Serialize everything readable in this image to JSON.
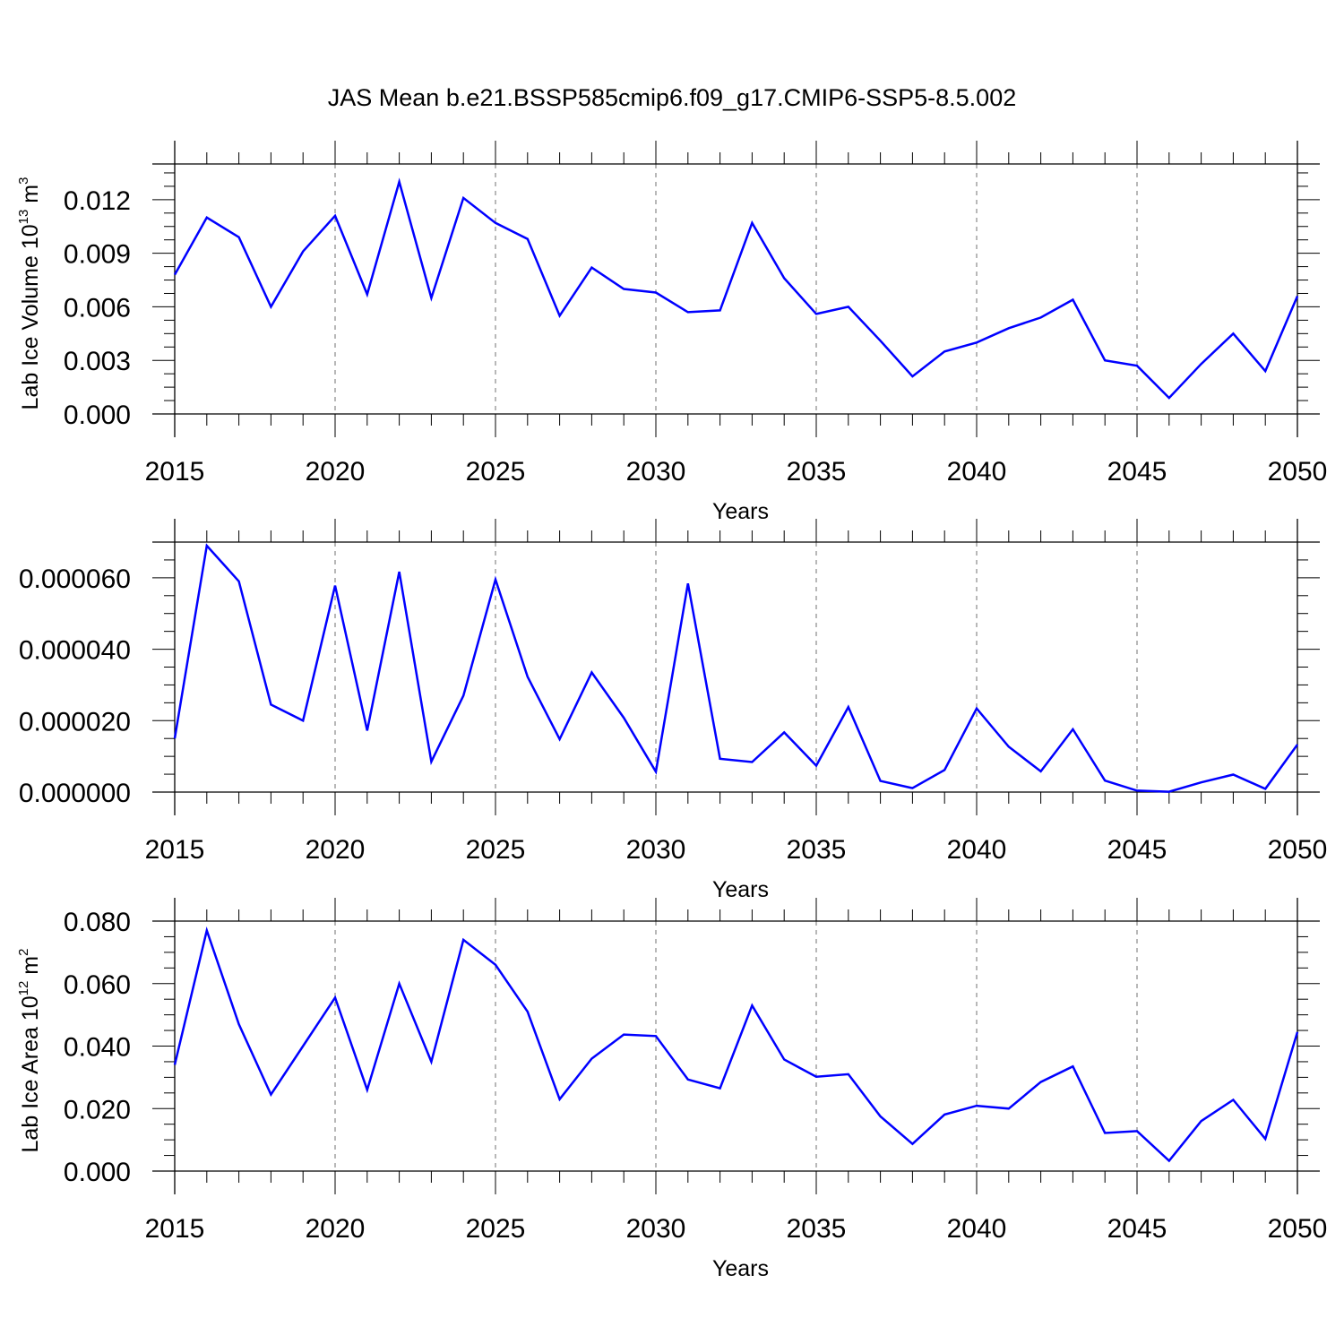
{
  "title": "JAS Mean b.e21.BSSP585cmip6.f09_g17.CMIP6-SSP5-8.5.002",
  "series_color": "#0000ff",
  "grid_color": "#888888",
  "chart_data": [
    {
      "type": "line",
      "panel": "top",
      "xlabel": "Years",
      "ylabel_text": "Lab Ice Volume 10",
      "ylabel_sup1": "13",
      "ylabel_mid": " m",
      "ylabel_sup2": "3",
      "xlim": [
        2015,
        2050
      ],
      "ylim": [
        0,
        0.014
      ],
      "x_ticks": [
        2015,
        2020,
        2025,
        2030,
        2035,
        2040,
        2045,
        2050
      ],
      "x_tick_labels": [
        "2015",
        "2020",
        "2025",
        "2030",
        "2035",
        "2040",
        "2045",
        "2050"
      ],
      "y_ticks": [
        0,
        0.003,
        0.006,
        0.009,
        0.012
      ],
      "y_tick_labels": [
        "0.000",
        "0.003",
        "0.006",
        "0.009",
        "0.012"
      ],
      "vertical_grid": "dashed at major x ticks",
      "x": [
        2015,
        2016,
        2017,
        2018,
        2019,
        2020,
        2021,
        2022,
        2023,
        2024,
        2025,
        2026,
        2027,
        2028,
        2029,
        2030,
        2031,
        2032,
        2033,
        2034,
        2035,
        2036,
        2037,
        2038,
        2039,
        2040,
        2041,
        2042,
        2043,
        2044,
        2045,
        2046,
        2047,
        2048,
        2049,
        2050
      ],
      "values": [
        0.0078,
        0.011,
        0.0099,
        0.006,
        0.0091,
        0.0111,
        0.0067,
        0.013,
        0.0065,
        0.0121,
        0.0107,
        0.0098,
        0.0055,
        0.0082,
        0.007,
        0.0068,
        0.0057,
        0.0058,
        0.0107,
        0.0076,
        0.0056,
        0.006,
        0.0041,
        0.0021,
        0.0035,
        0.004,
        0.0048,
        0.0054,
        0.0064,
        0.003,
        0.0027,
        0.0009,
        0.0028,
        0.0045,
        0.0024,
        0.0066
      ]
    },
    {
      "type": "line",
      "panel": "middle",
      "xlabel": "Years",
      "xlim": [
        2015,
        2050
      ],
      "ylim": [
        0,
        7e-05
      ],
      "x_ticks": [
        2015,
        2020,
        2025,
        2030,
        2035,
        2040,
        2045,
        2050
      ],
      "x_tick_labels": [
        "2015",
        "2020",
        "2025",
        "2030",
        "2035",
        "2040",
        "2045",
        "2050"
      ],
      "y_ticks": [
        0,
        2e-05,
        4e-05,
        6e-05
      ],
      "y_tick_labels": [
        "0.000000",
        "0.000020",
        "0.000040",
        "0.000060"
      ],
      "vertical_grid": "dashed at major x ticks",
      "x": [
        2015,
        2016,
        2017,
        2018,
        2019,
        2020,
        2021,
        2022,
        2023,
        2024,
        2025,
        2026,
        2027,
        2028,
        2029,
        2030,
        2031,
        2032,
        2033,
        2034,
        2035,
        2036,
        2037,
        2038,
        2039,
        2040,
        2041,
        2042,
        2043,
        2044,
        2045,
        2046,
        2047,
        2048,
        2049,
        2050
      ],
      "values": [
        1.5e-05,
        6.9e-05,
        5.9e-05,
        2.45e-05,
        2e-05,
        5.78e-05,
        1.72e-05,
        6.17e-05,
        8.5e-06,
        2.7e-05,
        5.95e-05,
        3.23e-05,
        1.48e-05,
        3.35e-05,
        2.08e-05,
        5.7e-06,
        5.84e-05,
        9.3e-06,
        8.4e-06,
        1.67e-05,
        7.4e-06,
        2.38e-05,
        3.1e-06,
        1.1e-06,
        6.2e-06,
        2.34e-05,
        1.27e-05,
        5.8e-06,
        1.76e-05,
        3.2e-06,
        4e-07,
        1e-07,
        2.7e-06,
        4.9e-06,
        9e-07,
        1.33e-05
      ]
    },
    {
      "type": "line",
      "panel": "bottom",
      "xlabel": "Years",
      "ylabel_text": "Lab Ice Area 10",
      "ylabel_sup1": "12",
      "ylabel_mid": " m",
      "ylabel_sup2": "2",
      "xlim": [
        2015,
        2050
      ],
      "ylim": [
        0,
        0.08
      ],
      "x_ticks": [
        2015,
        2020,
        2025,
        2030,
        2035,
        2040,
        2045,
        2050
      ],
      "x_tick_labels": [
        "2015",
        "2020",
        "2025",
        "2030",
        "2035",
        "2040",
        "2045",
        "2050"
      ],
      "y_ticks": [
        0,
        0.02,
        0.04,
        0.06,
        0.08
      ],
      "y_tick_labels": [
        "0.000",
        "0.020",
        "0.040",
        "0.060",
        "0.080"
      ],
      "vertical_grid": "dashed at major x ticks",
      "x": [
        2015,
        2016,
        2017,
        2018,
        2019,
        2020,
        2021,
        2022,
        2023,
        2024,
        2025,
        2026,
        2027,
        2028,
        2029,
        2030,
        2031,
        2032,
        2033,
        2034,
        2035,
        2036,
        2037,
        2038,
        2039,
        2040,
        2041,
        2042,
        2043,
        2044,
        2045,
        2046,
        2047,
        2048,
        2049,
        2050
      ],
      "values": [
        0.034,
        0.077,
        0.047,
        0.0245,
        0.04,
        0.0555,
        0.026,
        0.06,
        0.035,
        0.074,
        0.066,
        0.051,
        0.023,
        0.036,
        0.0437,
        0.0432,
        0.0293,
        0.0265,
        0.053,
        0.0357,
        0.0302,
        0.031,
        0.0175,
        0.0087,
        0.0181,
        0.0209,
        0.02,
        0.0285,
        0.0335,
        0.0122,
        0.0128,
        0.0033,
        0.016,
        0.0228,
        0.0103,
        0.0445
      ]
    }
  ]
}
